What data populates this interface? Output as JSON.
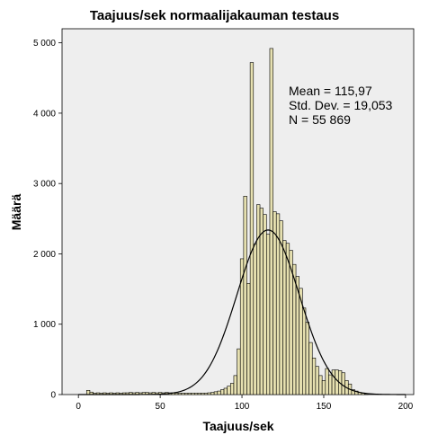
{
  "chart_data": {
    "type": "bar",
    "subtype": "histogram",
    "title": "Taajuus/sek normaalijakauman testaus",
    "xlabel": "Taajuus/sek",
    "ylabel": "Määrä",
    "xlim": [
      -10,
      205
    ],
    "ylim": [
      0,
      5200
    ],
    "x_ticks": [
      {
        "value": 0,
        "label": "0"
      },
      {
        "value": 50,
        "label": "50"
      },
      {
        "value": 100,
        "label": "100"
      },
      {
        "value": 150,
        "label": "150"
      },
      {
        "value": 200,
        "label": "200"
      }
    ],
    "y_ticks": [
      {
        "value": 0,
        "label": "0"
      },
      {
        "value": 1000,
        "label": "1 000"
      },
      {
        "value": 2000,
        "label": "2 000"
      },
      {
        "value": 3000,
        "label": "3 000"
      },
      {
        "value": 4000,
        "label": "4 000"
      },
      {
        "value": 5000,
        "label": "5 000"
      }
    ],
    "bin_width": 2,
    "bins": [
      {
        "x": 6,
        "y": 60
      },
      {
        "x": 8,
        "y": 35
      },
      {
        "x": 10,
        "y": 20
      },
      {
        "x": 12,
        "y": 25
      },
      {
        "x": 14,
        "y": 20
      },
      {
        "x": 16,
        "y": 25
      },
      {
        "x": 18,
        "y": 20
      },
      {
        "x": 20,
        "y": 25
      },
      {
        "x": 22,
        "y": 20
      },
      {
        "x": 24,
        "y": 25
      },
      {
        "x": 26,
        "y": 20
      },
      {
        "x": 28,
        "y": 25
      },
      {
        "x": 30,
        "y": 25
      },
      {
        "x": 32,
        "y": 30
      },
      {
        "x": 34,
        "y": 25
      },
      {
        "x": 36,
        "y": 30
      },
      {
        "x": 38,
        "y": 25
      },
      {
        "x": 40,
        "y": 30
      },
      {
        "x": 42,
        "y": 30
      },
      {
        "x": 44,
        "y": 25
      },
      {
        "x": 46,
        "y": 30
      },
      {
        "x": 48,
        "y": 25
      },
      {
        "x": 50,
        "y": 30
      },
      {
        "x": 52,
        "y": 25
      },
      {
        "x": 54,
        "y": 30
      },
      {
        "x": 56,
        "y": 25
      },
      {
        "x": 58,
        "y": 25
      },
      {
        "x": 60,
        "y": 20
      },
      {
        "x": 62,
        "y": 20
      },
      {
        "x": 64,
        "y": 20
      },
      {
        "x": 66,
        "y": 20
      },
      {
        "x": 68,
        "y": 20
      },
      {
        "x": 70,
        "y": 20
      },
      {
        "x": 72,
        "y": 20
      },
      {
        "x": 74,
        "y": 20
      },
      {
        "x": 76,
        "y": 20
      },
      {
        "x": 78,
        "y": 20
      },
      {
        "x": 80,
        "y": 25
      },
      {
        "x": 82,
        "y": 30
      },
      {
        "x": 84,
        "y": 40
      },
      {
        "x": 86,
        "y": 50
      },
      {
        "x": 88,
        "y": 70
      },
      {
        "x": 90,
        "y": 90
      },
      {
        "x": 92,
        "y": 120
      },
      {
        "x": 94,
        "y": 160
      },
      {
        "x": 96,
        "y": 270
      },
      {
        "x": 98,
        "y": 650
      },
      {
        "x": 100,
        "y": 1930
      },
      {
        "x": 102,
        "y": 2820
      },
      {
        "x": 104,
        "y": 1580
      },
      {
        "x": 106,
        "y": 4720
      },
      {
        "x": 108,
        "y": 2140
      },
      {
        "x": 110,
        "y": 2700
      },
      {
        "x": 112,
        "y": 2650
      },
      {
        "x": 114,
        "y": 2560
      },
      {
        "x": 116,
        "y": 2280
      },
      {
        "x": 118,
        "y": 4920
      },
      {
        "x": 120,
        "y": 2600
      },
      {
        "x": 122,
        "y": 2570
      },
      {
        "x": 124,
        "y": 2470
      },
      {
        "x": 126,
        "y": 2190
      },
      {
        "x": 128,
        "y": 2150
      },
      {
        "x": 130,
        "y": 2050
      },
      {
        "x": 132,
        "y": 1850
      },
      {
        "x": 134,
        "y": 1680
      },
      {
        "x": 136,
        "y": 1510
      },
      {
        "x": 138,
        "y": 1230
      },
      {
        "x": 140,
        "y": 1030
      },
      {
        "x": 142,
        "y": 740
      },
      {
        "x": 144,
        "y": 520
      },
      {
        "x": 146,
        "y": 400
      },
      {
        "x": 148,
        "y": 270
      },
      {
        "x": 150,
        "y": 200
      },
      {
        "x": 152,
        "y": 370
      },
      {
        "x": 154,
        "y": 280
      },
      {
        "x": 156,
        "y": 350
      },
      {
        "x": 158,
        "y": 350
      },
      {
        "x": 160,
        "y": 340
      },
      {
        "x": 162,
        "y": 310
      },
      {
        "x": 164,
        "y": 200
      },
      {
        "x": 166,
        "y": 150
      },
      {
        "x": 168,
        "y": 70
      },
      {
        "x": 170,
        "y": 50
      },
      {
        "x": 172,
        "y": 30
      },
      {
        "x": 174,
        "y": 20
      },
      {
        "x": 176,
        "y": 10
      }
    ],
    "normal_curve": {
      "mean": 115.97,
      "sd": 19.053,
      "n": 55869,
      "peak": 2340
    },
    "annotations": [
      "Mean = 115,97",
      "Std. Dev. = 19,053",
      "N = 55 869"
    ],
    "colors": {
      "plot_background": "#eeeeee",
      "bar_fill": "#e6e0b0",
      "bar_stroke": "#000000",
      "curve": "#000000"
    },
    "grid": false,
    "legend": "none"
  }
}
